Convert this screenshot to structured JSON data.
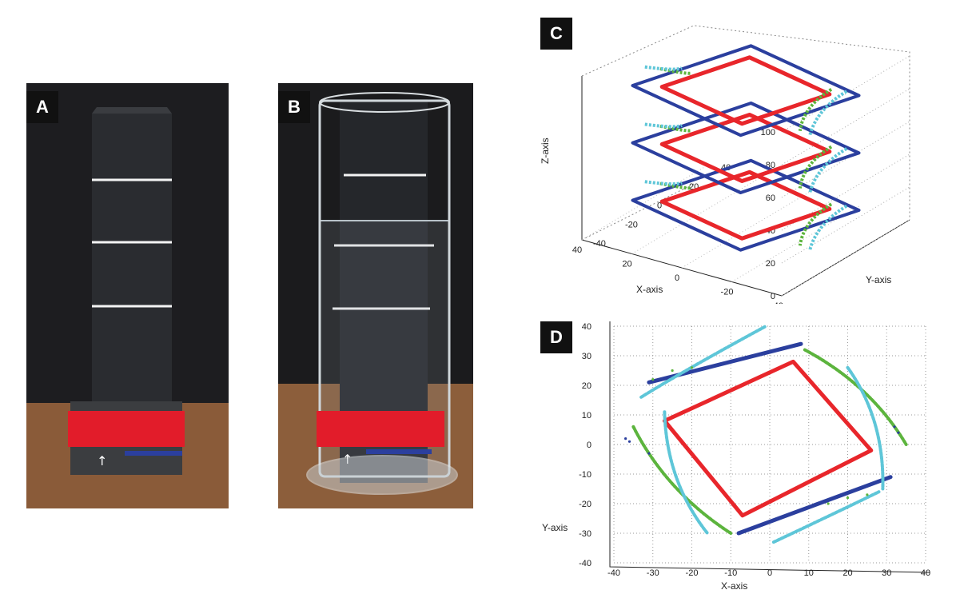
{
  "panels": {
    "a": {
      "label": "A"
    },
    "b": {
      "label": "B"
    },
    "c": {
      "label": "C"
    },
    "d": {
      "label": "D"
    }
  },
  "colors": {
    "red": "#e8262b",
    "blue": "#2b3f9e",
    "green": "#5cb43d",
    "cyan": "#5ec6d8",
    "phantom": "#2a2c30",
    "tape_red": "#e21c2a",
    "table": "#8a5d3a",
    "backdrop": "#1b1b1d"
  },
  "chart_data": [
    {
      "type": "scatter",
      "panel": "C",
      "xlabel": "X-axis",
      "ylabel": "Y-axis",
      "zlabel": "Z-axis",
      "xlim": [
        -40,
        40
      ],
      "ylim": [
        -40,
        40
      ],
      "zlim": [
        0,
        100
      ],
      "x_ticks": [
        "-40",
        "-20",
        "0",
        "20",
        "40"
      ],
      "y_ticks": [
        "-40",
        "-20",
        "0",
        "20",
        "40"
      ],
      "z_ticks": [
        "0",
        "20",
        "40",
        "60",
        "80",
        "100"
      ],
      "grid": true,
      "layers_z": [
        15,
        50,
        85
      ],
      "series": [
        {
          "color": "red",
          "shape": "square",
          "half_size": 20,
          "rotation_deg": 15
        },
        {
          "color": "blue",
          "shape": "square",
          "half_size": 27,
          "rotation_deg": 15
        },
        {
          "color": "green",
          "shape": "arcs",
          "radius": 28
        },
        {
          "color": "cyan",
          "shape": "arcs",
          "radius": 33
        }
      ]
    },
    {
      "type": "scatter",
      "panel": "D",
      "xlabel": "X-axis",
      "ylabel": "Y-axis",
      "xlim": [
        -40,
        40
      ],
      "ylim": [
        -40,
        40
      ],
      "x_ticks": [
        "-40",
        "-30",
        "-20",
        "-10",
        "0",
        "10",
        "20",
        "30",
        "40"
      ],
      "y_ticks": [
        "40",
        "30",
        "20",
        "10",
        "0",
        "-10",
        "-20",
        "-30",
        "-40"
      ],
      "grid": true,
      "series": [
        {
          "color": "red",
          "shape": "square",
          "vertices": [
            [
              6,
              28
            ],
            [
              26,
              -2
            ],
            [
              -7,
              -24
            ],
            [
              -27,
              8
            ]
          ]
        },
        {
          "color": "blue",
          "shape": "parallel-lines",
          "segments": [
            [
              [
                -31,
                21
              ],
              [
                8,
                34
              ]
            ],
            [
              [
                -8,
                -30
              ],
              [
                31,
                -11
              ]
            ]
          ]
        },
        {
          "color": "green",
          "shape": "arcs",
          "segments": [
            [
              [
                9,
                32
              ],
              [
                35,
                0
              ]
            ],
            [
              [
                -35,
                6
              ],
              [
                -10,
                -30
              ]
            ]
          ]
        },
        {
          "color": "cyan",
          "shape": "arcs",
          "segments": [
            [
              [
                -33,
                16
              ],
              [
                -1,
                40
              ]
            ],
            [
              [
                20,
                26
              ],
              [
                29,
                -15
              ]
            ],
            [
              [
                -27,
                11
              ],
              [
                -16,
                -30
              ]
            ],
            [
              [
                1,
                -33
              ],
              [
                28,
                -16
              ]
            ]
          ]
        }
      ]
    }
  ]
}
